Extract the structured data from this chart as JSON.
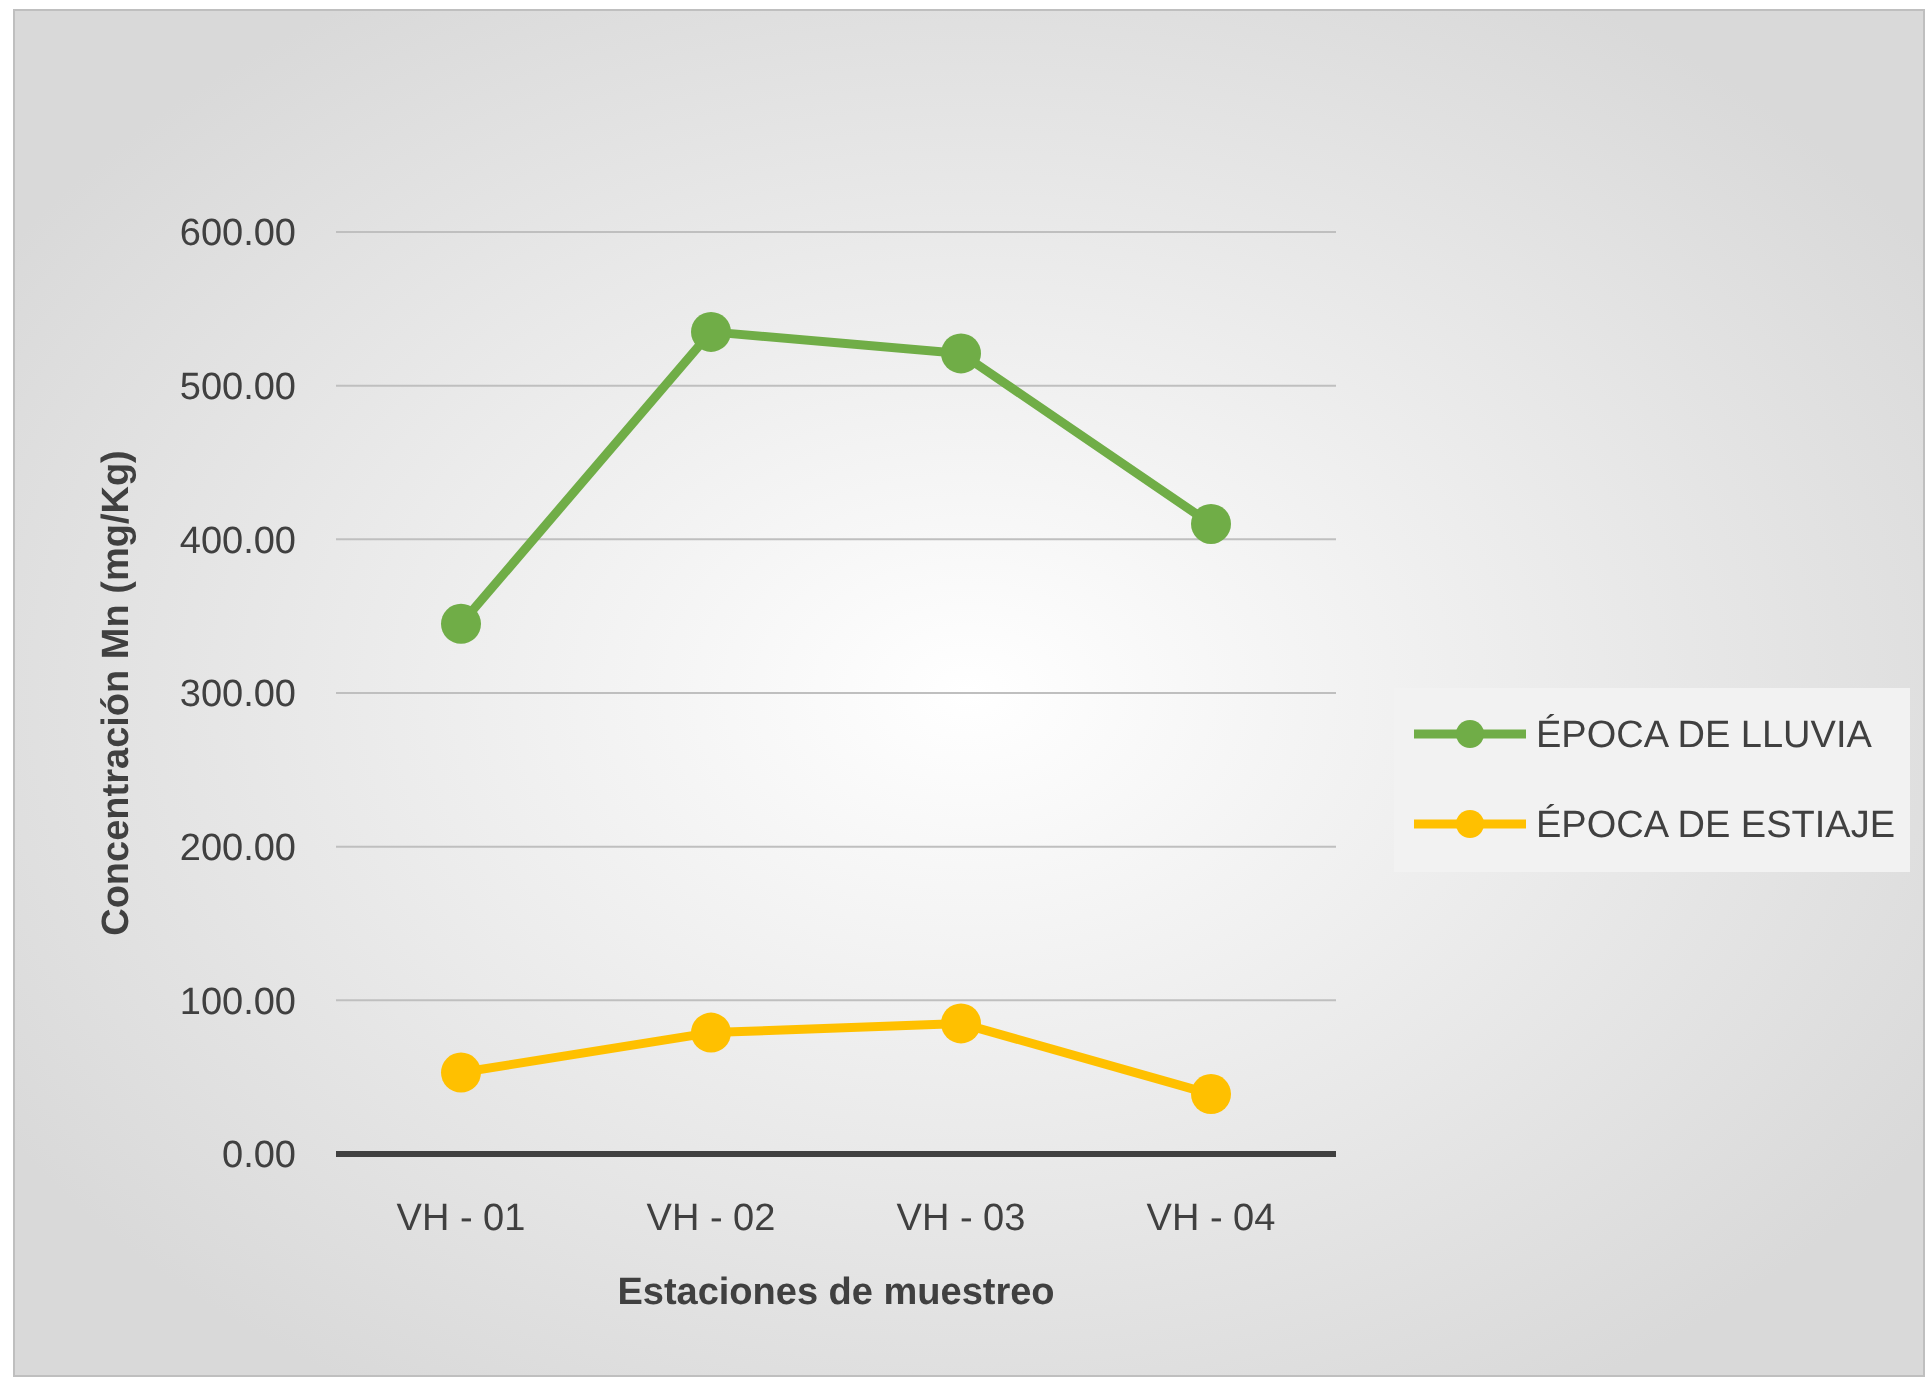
{
  "chart_data": {
    "type": "line",
    "xlabel": "Estaciones de muestreo",
    "ylabel": "Concentración Mn (mg/Kg)",
    "categories": [
      "VH - 01",
      "VH - 02",
      "VH - 03",
      "VH - 04"
    ],
    "series": [
      {
        "name": "ÉPOCA DE LLUVIA",
        "color": "#70ad47",
        "values": [
          345,
          535,
          521,
          410
        ]
      },
      {
        "name": "ÉPOCA DE ESTIAJE",
        "color": "#ffc000",
        "values": [
          53,
          79,
          85,
          39
        ]
      }
    ],
    "ylim": [
      0,
      600
    ],
    "yticks": [
      {
        "value": 0,
        "label": "0.00"
      },
      {
        "value": 100,
        "label": "100.00"
      },
      {
        "value": 200,
        "label": "200.00"
      },
      {
        "value": 300,
        "label": "300.00"
      },
      {
        "value": 400,
        "label": "400.00"
      },
      {
        "value": 500,
        "label": "500.00"
      },
      {
        "value": 600,
        "label": "600.00"
      }
    ],
    "grid": "y",
    "legend": "right",
    "marker": "circle",
    "line_style": "solid"
  }
}
